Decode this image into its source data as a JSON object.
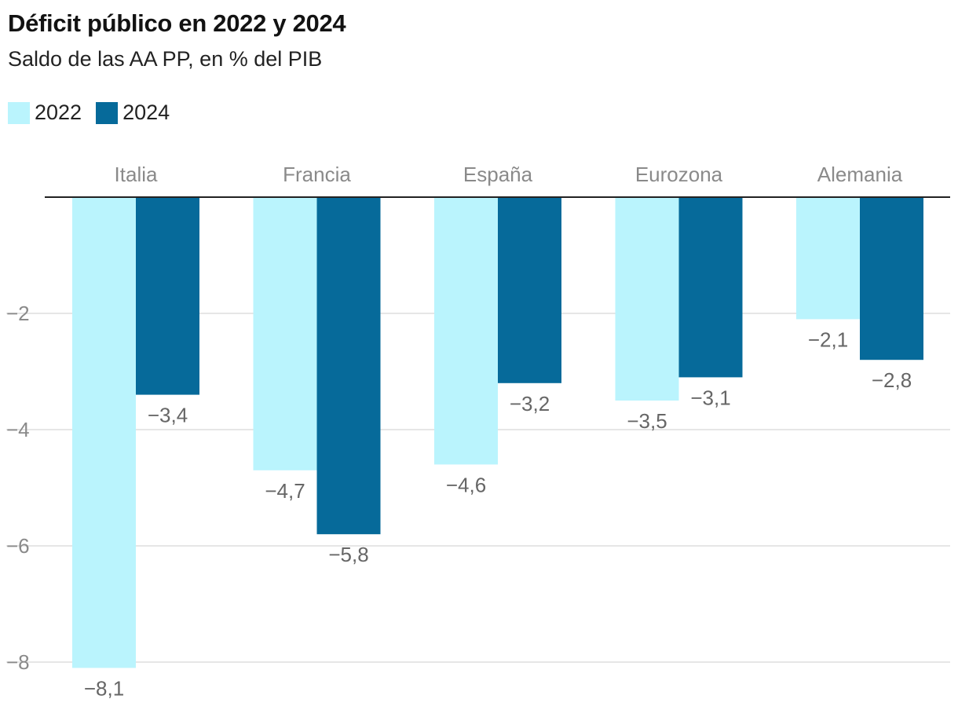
{
  "header": {
    "title": "Déficit público en 2022 y 2024",
    "subtitle": "Saldo de las AA PP, en % del PIB"
  },
  "legend": [
    {
      "label": "2022",
      "color": "#baf4fd"
    },
    {
      "label": "2024",
      "color": "#066a9a"
    }
  ],
  "chart_data": {
    "type": "bar",
    "title": "Déficit público en 2022 y 2024",
    "subtitle": "Saldo de las AA PP, en % del PIB",
    "categories": [
      "Italia",
      "Francia",
      "España",
      "Eurozona",
      "Alemania"
    ],
    "series": [
      {
        "name": "2022",
        "color": "#baf4fd",
        "values": [
          -8.1,
          -4.7,
          -4.6,
          -3.5,
          -2.1
        ],
        "labels": [
          "−8,1",
          "−4,7",
          "−4,6",
          "−3,5",
          "−2,1"
        ]
      },
      {
        "name": "2024",
        "color": "#066a9a",
        "values": [
          -3.4,
          -5.8,
          -3.2,
          -3.1,
          -2.8
        ],
        "labels": [
          "−3,4",
          "−5,8",
          "−3,2",
          "−3,1",
          "−2,8"
        ]
      }
    ],
    "yticks": [
      -2,
      -4,
      -6,
      -8
    ],
    "ytick_labels": [
      "−2",
      "−4",
      "−6",
      "−8"
    ],
    "ylim": [
      -8.1,
      0
    ],
    "xlabel": "",
    "ylabel": "",
    "grid": true,
    "legend_position": "top-left"
  }
}
